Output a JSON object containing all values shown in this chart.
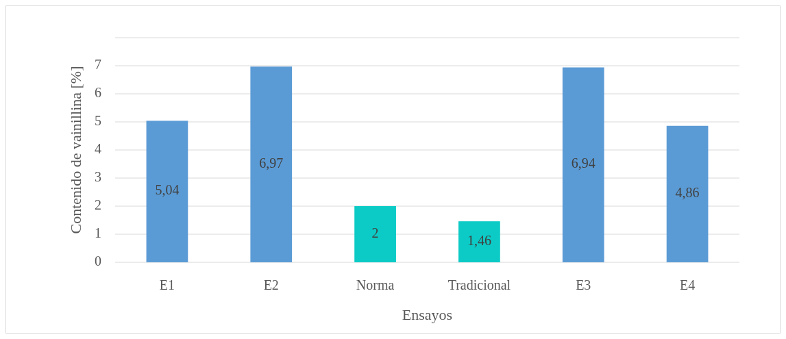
{
  "chart_data": {
    "type": "bar",
    "xlabel": "Ensayos",
    "ylabel": "Contenido de vainillina [%]",
    "categories": [
      "E1",
      "E2",
      "Norma",
      "Tradicional",
      "E3",
      "E4"
    ],
    "values": [
      5.04,
      6.97,
      2,
      1.46,
      6.94,
      4.86
    ],
    "colors": [
      "#5b9bd5",
      "#5b9bd5",
      "#0ccbc6",
      "#0ccbc6",
      "#5b9bd5",
      "#5b9bd5"
    ],
    "value_labels": [
      "5,04",
      "6,97",
      "2",
      "1,46",
      "6,94",
      "4,86"
    ],
    "ylim": [
      0,
      8
    ],
    "yticks": [
      0,
      1,
      2,
      3,
      4,
      5,
      6,
      7,
      {
        "value": 8,
        "label": null
      }
    ],
    "grid": "y"
  }
}
